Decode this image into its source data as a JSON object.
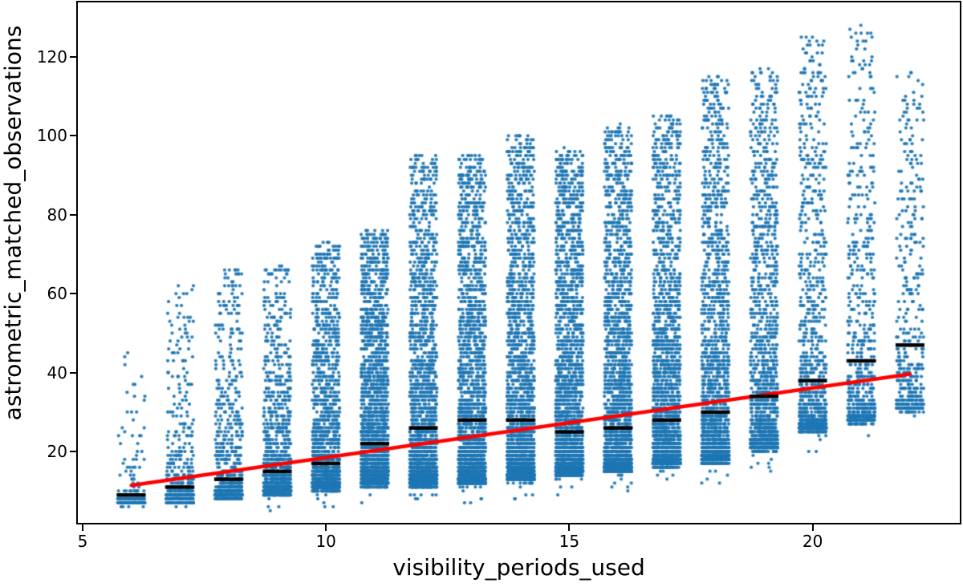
{
  "chart_data": {
    "type": "scatter",
    "title": "",
    "xlabel": "visibility_periods_used",
    "ylabel": "astrometric_matched_observations",
    "x_ticks": [
      5,
      10,
      15,
      20
    ],
    "y_ticks": [
      20,
      40,
      60,
      80,
      100,
      120
    ],
    "xlim": [
      4.885,
      23.04
    ],
    "ylim": [
      1.7,
      134.0
    ],
    "grid": false,
    "legend": "none",
    "point_color": "#1f77b4",
    "median_color": "#000000",
    "trend_color": "#ff0000",
    "point_radius_px": 2.1,
    "jitter_halfwidth": 0.28,
    "trend_line": {
      "x1": 6,
      "y1": 11.4,
      "x2": 22,
      "y2": 39.6
    },
    "medians_note": "black horizontal dashes mark the median astrometric_matched_observations per visibility_periods_used value",
    "clusters": [
      {
        "x": 6,
        "median": 9,
        "lo": 7.5,
        "dense_hi": 14,
        "max": 45,
        "n": 260
      },
      {
        "x": 7,
        "median": 11,
        "lo": 8,
        "dense_hi": 26,
        "max": 62,
        "n": 600
      },
      {
        "x": 8,
        "median": 13,
        "lo": 9,
        "dense_hi": 32,
        "max": 66,
        "n": 900
      },
      {
        "x": 9,
        "median": 15,
        "lo": 10,
        "dense_hi": 38,
        "max": 67,
        "n": 1200
      },
      {
        "x": 10,
        "median": 17,
        "lo": 11,
        "dense_hi": 48,
        "max": 73,
        "n": 1550
      },
      {
        "x": 11,
        "median": 22,
        "lo": 12,
        "dense_hi": 56,
        "max": 76,
        "n": 1850
      },
      {
        "x": 12,
        "median": 26,
        "lo": 12,
        "dense_hi": 60,
        "max": 95,
        "n": 2050
      },
      {
        "x": 13,
        "median": 28,
        "lo": 12.5,
        "dense_hi": 63,
        "max": 95,
        "n": 2150
      },
      {
        "x": 14,
        "median": 28,
        "lo": 13.5,
        "dense_hi": 65,
        "max": 100,
        "n": 2150
      },
      {
        "x": 15,
        "median": 25,
        "lo": 14.5,
        "dense_hi": 66,
        "max": 96,
        "n": 2150
      },
      {
        "x": 16,
        "median": 26,
        "lo": 15.5,
        "dense_hi": 68,
        "max": 102,
        "n": 2100
      },
      {
        "x": 17,
        "median": 28,
        "lo": 17,
        "dense_hi": 70,
        "max": 105,
        "n": 2000
      },
      {
        "x": 18,
        "median": 30,
        "lo": 18,
        "dense_hi": 73,
        "max": 115,
        "n": 1850
      },
      {
        "x": 19,
        "median": 34,
        "lo": 21,
        "dense_hi": 78,
        "max": 117,
        "n": 1400
      },
      {
        "x": 20,
        "median": 38,
        "lo": 26,
        "dense_hi": 82,
        "max": 125,
        "n": 1000
      },
      {
        "x": 21,
        "median": 43,
        "lo": 28,
        "dense_hi": 85,
        "max": 128,
        "n": 700
      },
      {
        "x": 22,
        "median": 47,
        "lo": 31,
        "dense_hi": 88,
        "max": 116,
        "n": 420
      }
    ]
  }
}
